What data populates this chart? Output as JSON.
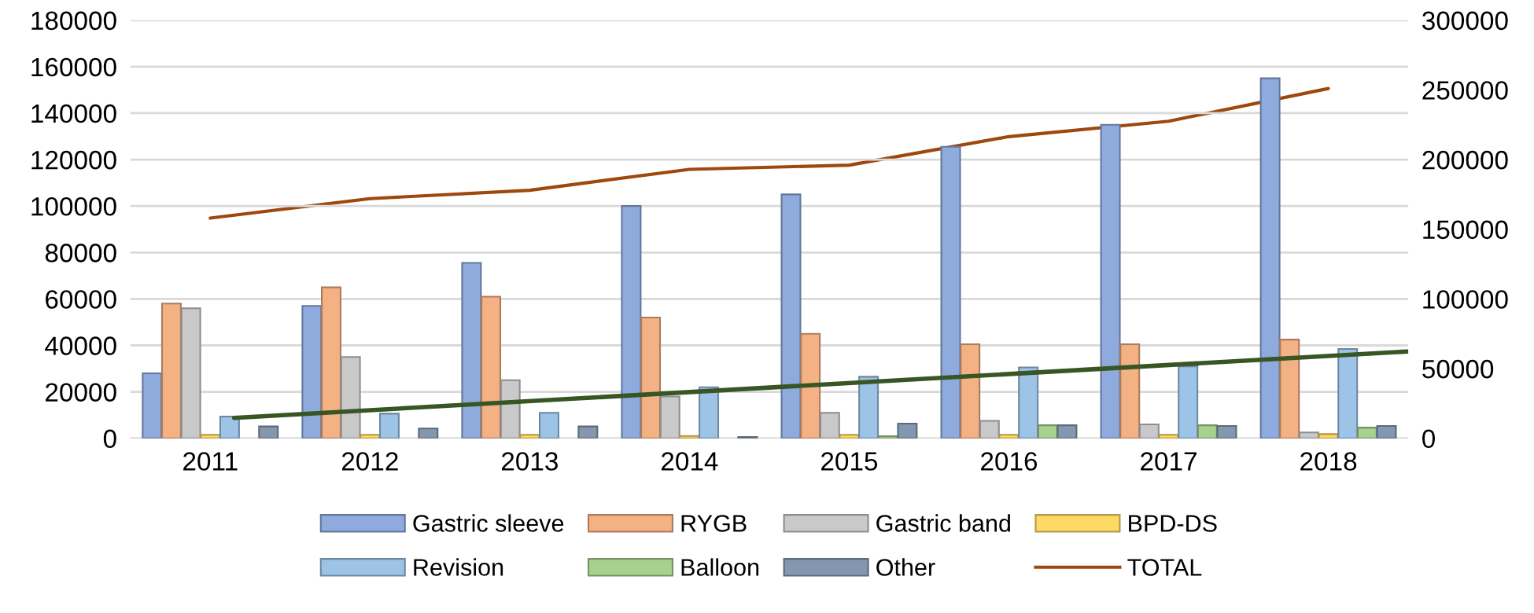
{
  "chart_data": {
    "type": "bar",
    "x": [
      2011,
      2012,
      2013,
      2014,
      2015,
      2016,
      2017,
      2018
    ],
    "xlim": [
      2010.5,
      2018.5
    ],
    "xticks": [
      2011,
      2012,
      2013,
      2014,
      2015,
      2016,
      2017,
      2018
    ],
    "ylim": [
      0,
      180000
    ],
    "yticks": [
      0,
      20000,
      40000,
      60000,
      80000,
      100000,
      120000,
      140000,
      160000,
      180000
    ],
    "y2lim": [
      0,
      300000
    ],
    "y2ticks": [
      0,
      50000,
      100000,
      150000,
      200000,
      250000,
      300000
    ],
    "grid": "y",
    "legend": "bottom",
    "series": [
      {
        "name": "Gastric sleeve",
        "color": "#8faadc",
        "values": [
          28000,
          57000,
          75500,
          100000,
          105000,
          125500,
          135000,
          155000
        ]
      },
      {
        "name": "RYGB",
        "color": "#f4b183",
        "values": [
          58000,
          65000,
          61000,
          52000,
          45000,
          40500,
          40500,
          42500
        ]
      },
      {
        "name": "Gastric band",
        "color": "#c9c9c9",
        "values": [
          56000,
          35000,
          25000,
          18000,
          11000,
          7500,
          6000,
          2500
        ]
      },
      {
        "name": "BPD-DS",
        "color": "#ffd966",
        "values": [
          1500,
          1500,
          1500,
          1000,
          1500,
          1500,
          1500,
          1800
        ]
      },
      {
        "name": "Revision",
        "color": "#9dc3e6",
        "values": [
          9400,
          10600,
          11000,
          22000,
          26500,
          30500,
          31000,
          38500
        ]
      },
      {
        "name": "Balloon",
        "color": "#a9d18e",
        "values": [
          null,
          null,
          null,
          null,
          900,
          5600,
          5600,
          4600
        ]
      },
      {
        "name": "Other",
        "color": "#8497b0",
        "values": [
          5100,
          4200,
          5100,
          600,
          6300,
          5600,
          5300,
          5300
        ]
      },
      {
        "name": "TOTAL",
        "type": "line",
        "axis": "y2",
        "color": "#9e480e",
        "values": [
          158000,
          172000,
          178000,
          193000,
          196000,
          216500,
          227500,
          251000
        ]
      },
      {
        "type": "line",
        "color": "#375623",
        "x": [
          2011.15,
          2018.5
        ],
        "values": [
          8800,
          37400
        ]
      }
    ]
  }
}
